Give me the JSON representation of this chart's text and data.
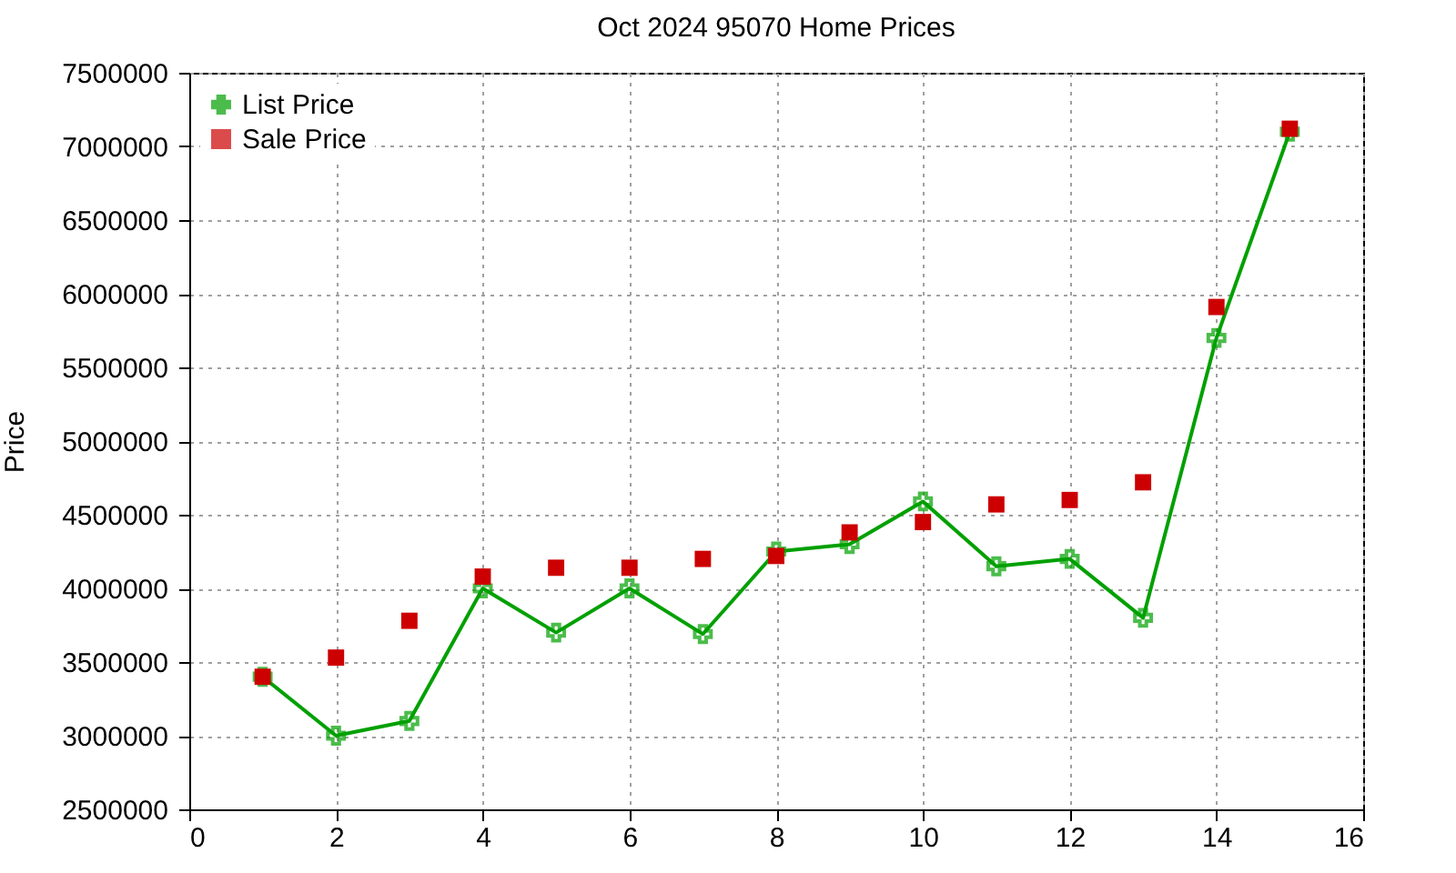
{
  "chart_data": {
    "type": "line",
    "title": "Oct 2024 95070 Home Prices",
    "ylabel": "Price",
    "x": [
      1,
      2,
      3,
      4,
      5,
      6,
      7,
      8,
      9,
      10,
      11,
      12,
      13,
      14,
      15
    ],
    "xlim": [
      0,
      16
    ],
    "xticks": [
      0,
      2,
      4,
      6,
      8,
      10,
      12,
      14,
      16
    ],
    "ylim": [
      2500000,
      7500000
    ],
    "yticks": [
      2500000,
      3000000,
      3500000,
      4000000,
      4500000,
      5000000,
      5500000,
      6000000,
      6500000,
      7000000,
      7500000
    ],
    "grid": true,
    "legend": "top left",
    "series": [
      {
        "name": "List Price",
        "marker": "cross",
        "color": "#00a000",
        "values": [
          3400000,
          3000000,
          3100000,
          4000000,
          3700000,
          4000000,
          3690000,
          4250000,
          4300000,
          4590000,
          4150000,
          4200000,
          3800000,
          5700000,
          7100000
        ]
      },
      {
        "name": "Sale Price",
        "type": "scatter",
        "marker": "square",
        "color": "#cc0000",
        "values": [
          3400000,
          3530000,
          3780000,
          4080000,
          4140000,
          4140000,
          4200000,
          4220000,
          4380000,
          4450000,
          4570000,
          4600000,
          4720000,
          5910000,
          7120000
        ]
      }
    ]
  }
}
